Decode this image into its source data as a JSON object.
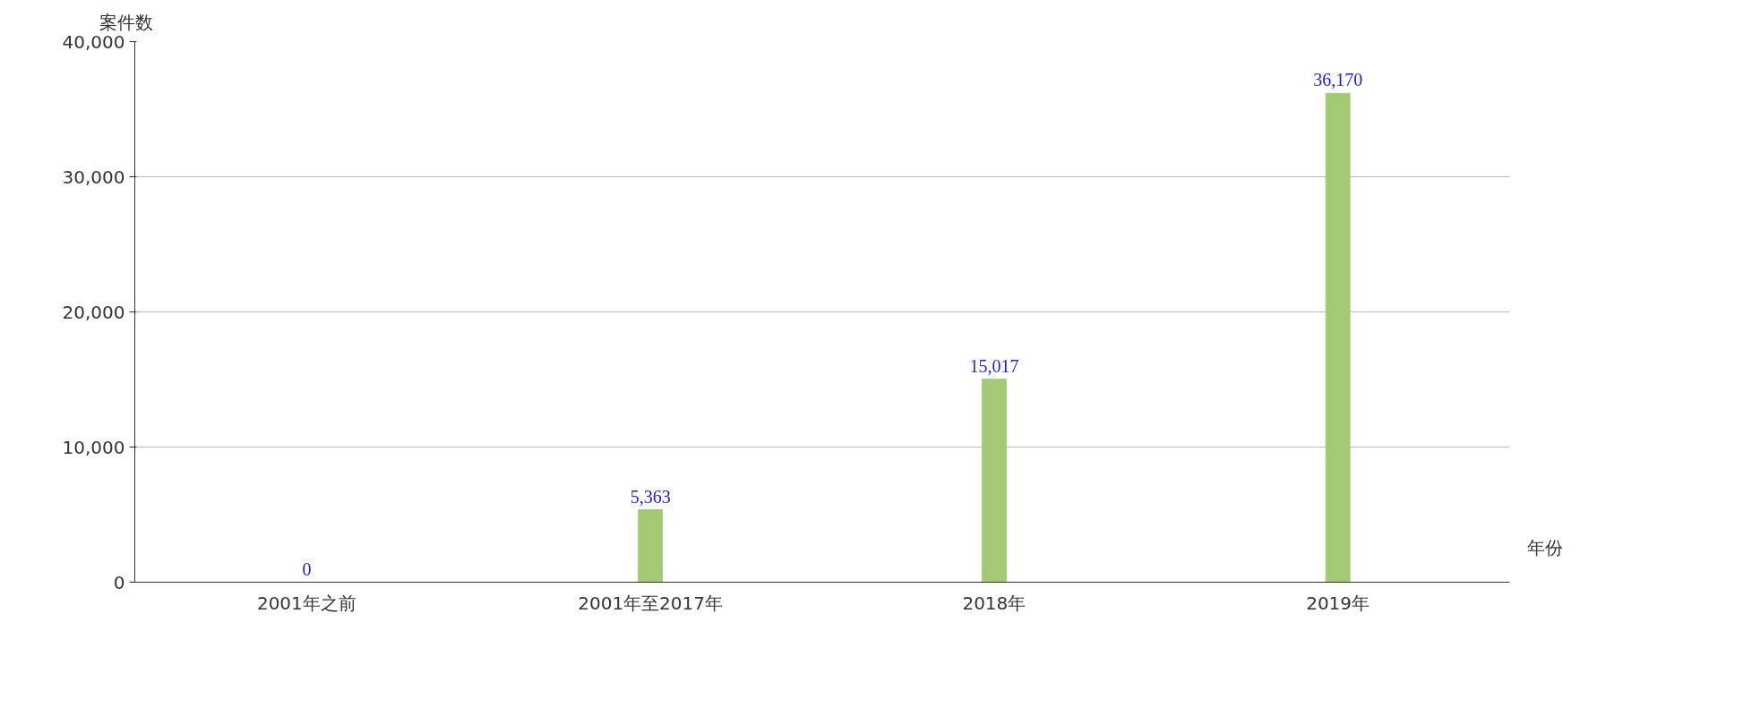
{
  "chart_data": {
    "type": "bar",
    "xlabel": "年份",
    "ylabel": "案件数",
    "categories": [
      "2001年之前",
      "2001年至2017年",
      "2018年",
      "2019年"
    ],
    "values": [
      0,
      5363,
      15017,
      36170
    ],
    "color": "#a3c974",
    "value_labels": [
      "0",
      "5,363",
      "15,017",
      "36,170"
    ],
    "ylim": [
      0,
      40000
    ],
    "yticks": [
      0,
      {
        "value": 10000,
        "label": "10,000"
      },
      {
        "value": 20000,
        "label": "20,000"
      },
      {
        "value": 30000,
        "label": "30,000"
      },
      {
        "value": 40000,
        "label": "40,000"
      }
    ],
    "grid": "y"
  }
}
